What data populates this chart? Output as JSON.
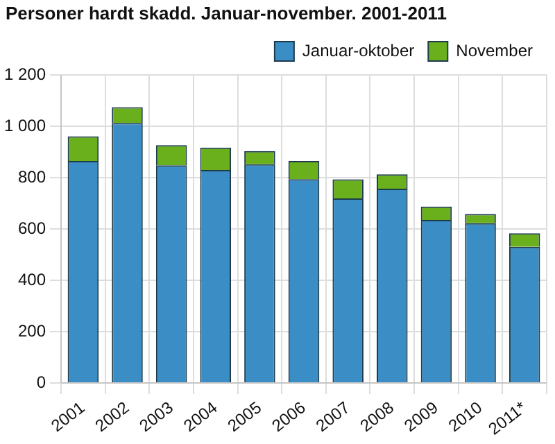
{
  "chart_data": {
    "type": "bar",
    "title": "Personer hardt skadd. Januar-november. 2001-2011",
    "categories": [
      "2001",
      "2002",
      "2003",
      "2004",
      "2005",
      "2006",
      "2007",
      "2008",
      "2009",
      "2010",
      "2011*"
    ],
    "series": [
      {
        "name": "Januar-oktober",
        "color": "#3a8dc5",
        "values": [
          865,
          1013,
          848,
          830,
          852,
          794,
          719,
          757,
          635,
          622,
          530
        ]
      },
      {
        "name": "November",
        "color": "#6aaf1c",
        "values": [
          96,
          61,
          78,
          87,
          51,
          71,
          74,
          56,
          52,
          36,
          53
        ]
      }
    ],
    "stacked": true,
    "ylim": [
      0,
      1200
    ],
    "yticks": [
      0,
      200,
      400,
      600,
      800,
      {
        "value": 1000,
        "label": "1 000"
      },
      {
        "value": 1200,
        "label": "1 200"
      }
    ],
    "grid": true,
    "legend": "top right"
  }
}
